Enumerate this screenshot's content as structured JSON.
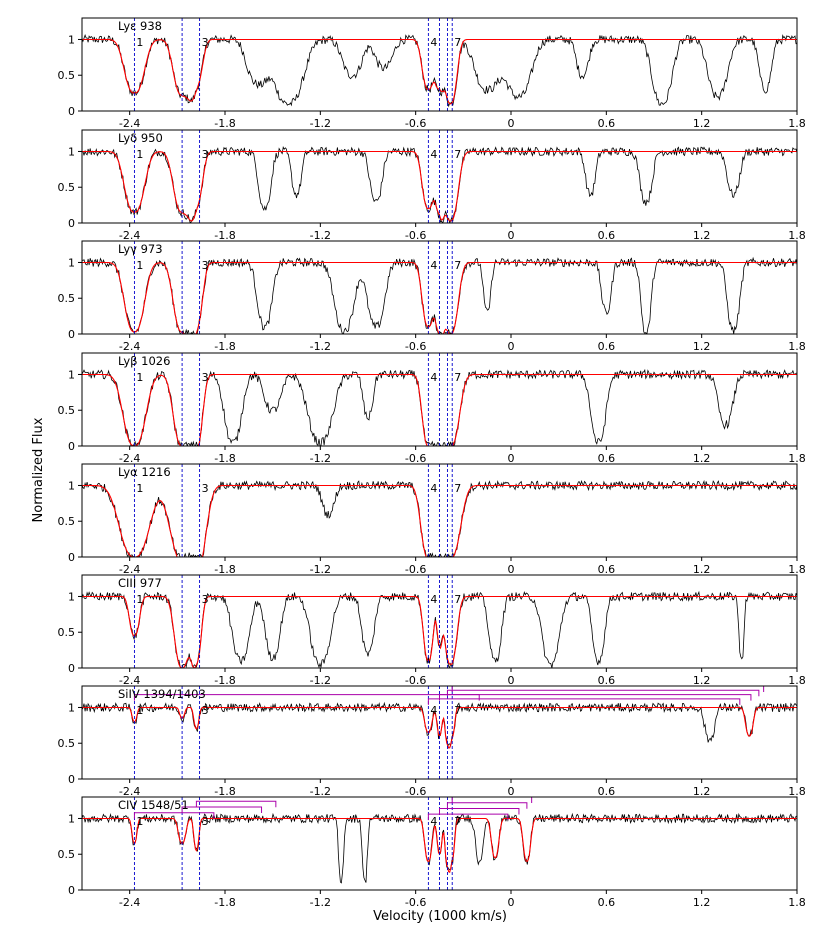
{
  "figure": {
    "xlabel": "Velocity (1000 km/s)",
    "ylabel": "Normalized Flux"
  },
  "chart_data": {
    "type": "line",
    "xlim": [
      -2.7,
      1.8
    ],
    "ylim": [
      0,
      1.3
    ],
    "x_ticks": [
      -2.4,
      -1.8,
      -1.2,
      -0.6,
      0,
      0.6,
      1.2,
      1.8
    ],
    "x_tick_labels": [
      "-2.4",
      "-1.8",
      "-1.2",
      "-0.6",
      "0",
      "0.6",
      "1.2",
      "1.8"
    ],
    "y_ticks": [
      0,
      0.5,
      1
    ],
    "y_tick_labels": [
      "0",
      "0.5",
      "1"
    ],
    "component_velocities": [
      -2.37,
      -2.07,
      -1.96,
      -0.52,
      -0.45,
      -0.4,
      -0.37
    ],
    "component_labels": [
      {
        "text": "1",
        "v": -2.37
      },
      {
        "text": "3",
        "v": -1.96
      },
      {
        "text": "4",
        "v": -0.52
      },
      {
        "text": "7",
        "v": -0.37
      }
    ],
    "panels": [
      {
        "label": "Lyε 938",
        "model_troughs": [
          [
            -2.37,
            0.08,
            0.75
          ],
          [
            -2.07,
            0.07,
            0.78
          ],
          [
            -1.98,
            0.05,
            0.6
          ],
          [
            -0.52,
            0.05,
            0.7
          ],
          [
            -0.45,
            0.03,
            0.55
          ],
          [
            -0.38,
            0.05,
            0.9
          ]
        ],
        "obs_troughs": [
          [
            -2.37,
            0.08,
            0.75
          ],
          [
            -2.07,
            0.07,
            0.78
          ],
          [
            -1.98,
            0.05,
            0.6
          ],
          [
            -1.6,
            0.08,
            0.6
          ],
          [
            -1.4,
            0.12,
            0.9
          ],
          [
            -1.0,
            0.08,
            0.5
          ],
          [
            -0.8,
            0.07,
            0.4
          ],
          [
            -0.52,
            0.05,
            0.7
          ],
          [
            -0.45,
            0.03,
            0.55
          ],
          [
            -0.38,
            0.05,
            0.9
          ],
          [
            -0.15,
            0.1,
            0.7
          ],
          [
            0.05,
            0.1,
            0.8
          ],
          [
            0.45,
            0.05,
            0.5
          ],
          [
            0.95,
            0.08,
            0.9
          ],
          [
            1.3,
            0.08,
            0.8
          ],
          [
            1.6,
            0.05,
            0.7
          ]
        ]
      },
      {
        "label": "Lyδ 950",
        "model_troughs": [
          [
            -2.37,
            0.08,
            0.85
          ],
          [
            -2.07,
            0.07,
            0.85
          ],
          [
            -1.98,
            0.05,
            0.7
          ],
          [
            -0.52,
            0.05,
            0.8
          ],
          [
            -0.45,
            0.03,
            0.6
          ],
          [
            -0.38,
            0.06,
            0.97
          ]
        ],
        "obs_troughs": [
          [
            -2.37,
            0.08,
            0.85
          ],
          [
            -2.07,
            0.07,
            0.85
          ],
          [
            -1.98,
            0.05,
            0.7
          ],
          [
            -1.55,
            0.05,
            0.8
          ],
          [
            -1.35,
            0.04,
            0.6
          ],
          [
            -0.85,
            0.05,
            0.7
          ],
          [
            -0.52,
            0.05,
            0.8
          ],
          [
            -0.45,
            0.03,
            0.6
          ],
          [
            -0.38,
            0.06,
            0.97
          ],
          [
            0.5,
            0.04,
            0.6
          ],
          [
            0.85,
            0.05,
            0.7
          ],
          [
            1.4,
            0.05,
            0.6
          ]
        ]
      },
      {
        "label": "Lyγ 973",
        "model_troughs": [
          [
            -2.37,
            0.08,
            0.97
          ],
          [
            -2.07,
            0.07,
            0.97
          ],
          [
            -1.98,
            0.05,
            0.85
          ],
          [
            -0.52,
            0.05,
            0.9
          ],
          [
            -0.45,
            0.03,
            0.7
          ],
          [
            -0.38,
            0.06,
            1.0
          ]
        ],
        "obs_troughs": [
          [
            -2.37,
            0.08,
            0.97
          ],
          [
            -2.07,
            0.07,
            0.97
          ],
          [
            -1.98,
            0.05,
            0.85
          ],
          [
            -1.55,
            0.06,
            0.9
          ],
          [
            -1.05,
            0.08,
            0.95
          ],
          [
            -0.85,
            0.07,
            0.9
          ],
          [
            -0.52,
            0.05,
            0.9
          ],
          [
            -0.45,
            0.03,
            0.7
          ],
          [
            -0.38,
            0.06,
            1.0
          ],
          [
            -0.15,
            0.03,
            0.7
          ],
          [
            0.6,
            0.04,
            0.7
          ],
          [
            0.85,
            0.04,
            1.0
          ],
          [
            1.4,
            0.05,
            0.95
          ]
        ]
      },
      {
        "label": "Lyβ 1026",
        "model_troughs": [
          [
            -2.37,
            0.09,
            1.0
          ],
          [
            -2.07,
            0.07,
            1.0
          ],
          [
            -1.98,
            0.05,
            0.98
          ],
          [
            -0.52,
            0.05,
            1.0
          ],
          [
            -0.45,
            0.04,
            0.9
          ],
          [
            -0.38,
            0.07,
            1.0
          ]
        ],
        "obs_troughs": [
          [
            -2.37,
            0.09,
            1.0
          ],
          [
            -2.07,
            0.07,
            1.0
          ],
          [
            -1.98,
            0.05,
            0.98
          ],
          [
            -1.75,
            0.07,
            0.95
          ],
          [
            -1.5,
            0.07,
            0.5
          ],
          [
            -1.2,
            0.1,
            0.95
          ],
          [
            -0.9,
            0.04,
            0.6
          ],
          [
            -0.52,
            0.05,
            1.0
          ],
          [
            -0.45,
            0.04,
            0.9
          ],
          [
            -0.38,
            0.07,
            1.0
          ],
          [
            0.55,
            0.06,
            0.95
          ],
          [
            1.35,
            0.06,
            0.7
          ]
        ]
      },
      {
        "label": "Lyα 1216",
        "model_troughs": [
          [
            -2.37,
            0.12,
            1.0
          ],
          [
            -2.07,
            0.1,
            1.0
          ],
          [
            -1.98,
            0.08,
            1.0
          ],
          [
            -0.52,
            0.06,
            1.0
          ],
          [
            -0.45,
            0.05,
            1.0
          ],
          [
            -0.38,
            0.08,
            1.0
          ]
        ],
        "obs_troughs": [
          [
            -2.37,
            0.12,
            1.0
          ],
          [
            -2.07,
            0.1,
            1.0
          ],
          [
            -1.98,
            0.08,
            1.0
          ],
          [
            -1.15,
            0.05,
            0.4
          ],
          [
            -0.52,
            0.06,
            1.0
          ],
          [
            -0.45,
            0.05,
            1.0
          ],
          [
            -0.38,
            0.08,
            1.0
          ]
        ]
      },
      {
        "label": "CIII 977",
        "model_troughs": [
          [
            -2.37,
            0.04,
            0.55
          ],
          [
            -2.07,
            0.06,
            1.0
          ],
          [
            -1.98,
            0.04,
            0.9
          ],
          [
            -0.52,
            0.04,
            0.9
          ],
          [
            -0.45,
            0.02,
            0.6
          ],
          [
            -0.38,
            0.05,
            0.95
          ]
        ],
        "obs_troughs": [
          [
            -2.37,
            0.04,
            0.55
          ],
          [
            -2.07,
            0.06,
            1.0
          ],
          [
            -1.98,
            0.04,
            0.9
          ],
          [
            -1.7,
            0.07,
            0.9
          ],
          [
            -1.5,
            0.06,
            0.85
          ],
          [
            -1.2,
            0.08,
            0.95
          ],
          [
            -0.9,
            0.05,
            0.8
          ],
          [
            -0.52,
            0.04,
            0.9
          ],
          [
            -0.45,
            0.02,
            0.6
          ],
          [
            -0.38,
            0.05,
            0.95
          ],
          [
            -0.1,
            0.05,
            0.9
          ],
          [
            0.25,
            0.07,
            0.95
          ],
          [
            0.55,
            0.05,
            0.9
          ],
          [
            1.45,
            0.02,
            0.9
          ]
        ]
      },
      {
        "label": "SiIV 1394/1403",
        "model_troughs": [
          [
            -2.37,
            0.02,
            0.2
          ],
          [
            -2.07,
            0.02,
            0.15
          ],
          [
            -1.98,
            0.02,
            0.3
          ],
          [
            -0.52,
            0.03,
            0.35
          ],
          [
            -0.45,
            0.02,
            0.4
          ],
          [
            -0.4,
            0.02,
            0.5
          ],
          [
            -0.37,
            0.02,
            0.4
          ],
          [
            1.5,
            0.03,
            0.4
          ]
        ],
        "obs_troughs": [
          [
            -2.37,
            0.02,
            0.2
          ],
          [
            -2.07,
            0.02,
            0.15
          ],
          [
            -1.98,
            0.02,
            0.3
          ],
          [
            -0.52,
            0.03,
            0.35
          ],
          [
            -0.45,
            0.02,
            0.4
          ],
          [
            -0.4,
            0.02,
            0.5
          ],
          [
            -0.37,
            0.02,
            0.4
          ],
          [
            1.25,
            0.04,
            0.45
          ],
          [
            1.5,
            0.03,
            0.4
          ]
        ],
        "doublet_brackets": [
          {
            "v": -2.37,
            "v2": -0.2,
            "level": 1.18
          },
          {
            "v": -0.52,
            "v2": 1.44,
            "level": 1.12
          },
          {
            "v": -0.45,
            "v2": 1.51,
            "level": 1.18
          },
          {
            "v": -0.4,
            "v2": 1.56,
            "level": 1.24
          },
          {
            "v": -0.37,
            "v2": 1.59,
            "level": 1.3
          }
        ]
      },
      {
        "label": "CIV 1548/51",
        "model_troughs": [
          [
            -2.37,
            0.02,
            0.35
          ],
          [
            -2.07,
            0.03,
            0.35
          ],
          [
            -1.98,
            0.02,
            0.45
          ],
          [
            -0.52,
            0.03,
            0.6
          ],
          [
            -0.45,
            0.02,
            0.5
          ],
          [
            -0.4,
            0.02,
            0.65
          ],
          [
            -0.37,
            0.02,
            0.55
          ],
          [
            -0.1,
            0.03,
            0.55
          ],
          [
            0.1,
            0.03,
            0.6
          ]
        ],
        "obs_troughs": [
          [
            -2.37,
            0.02,
            0.35
          ],
          [
            -2.07,
            0.03,
            0.35
          ],
          [
            -1.98,
            0.02,
            0.45
          ],
          [
            -1.07,
            0.02,
            0.9
          ],
          [
            -0.92,
            0.02,
            0.9
          ],
          [
            -0.52,
            0.03,
            0.6
          ],
          [
            -0.45,
            0.02,
            0.5
          ],
          [
            -0.4,
            0.02,
            0.65
          ],
          [
            -0.37,
            0.02,
            0.55
          ],
          [
            -0.2,
            0.03,
            0.6
          ],
          [
            -0.1,
            0.03,
            0.55
          ],
          [
            0.1,
            0.03,
            0.6
          ]
        ],
        "doublet_brackets": [
          {
            "v": -2.37,
            "v2": -1.87,
            "level": 1.08
          },
          {
            "v": -2.07,
            "v2": -1.57,
            "level": 1.16
          },
          {
            "v": -1.98,
            "v2": -1.48,
            "level": 1.24
          },
          {
            "v": -0.52,
            "v2": -0.02,
            "level": 1.06
          },
          {
            "v": -0.45,
            "v2": 0.05,
            "level": 1.14
          },
          {
            "v": -0.4,
            "v2": 0.1,
            "level": 1.22
          },
          {
            "v": -0.37,
            "v2": 0.13,
            "level": 1.3
          }
        ]
      }
    ]
  },
  "colors": {
    "data": "#000000",
    "model": "#ff0000",
    "component_lines": "#0000cc",
    "doublet_brackets": "#aa00aa"
  }
}
